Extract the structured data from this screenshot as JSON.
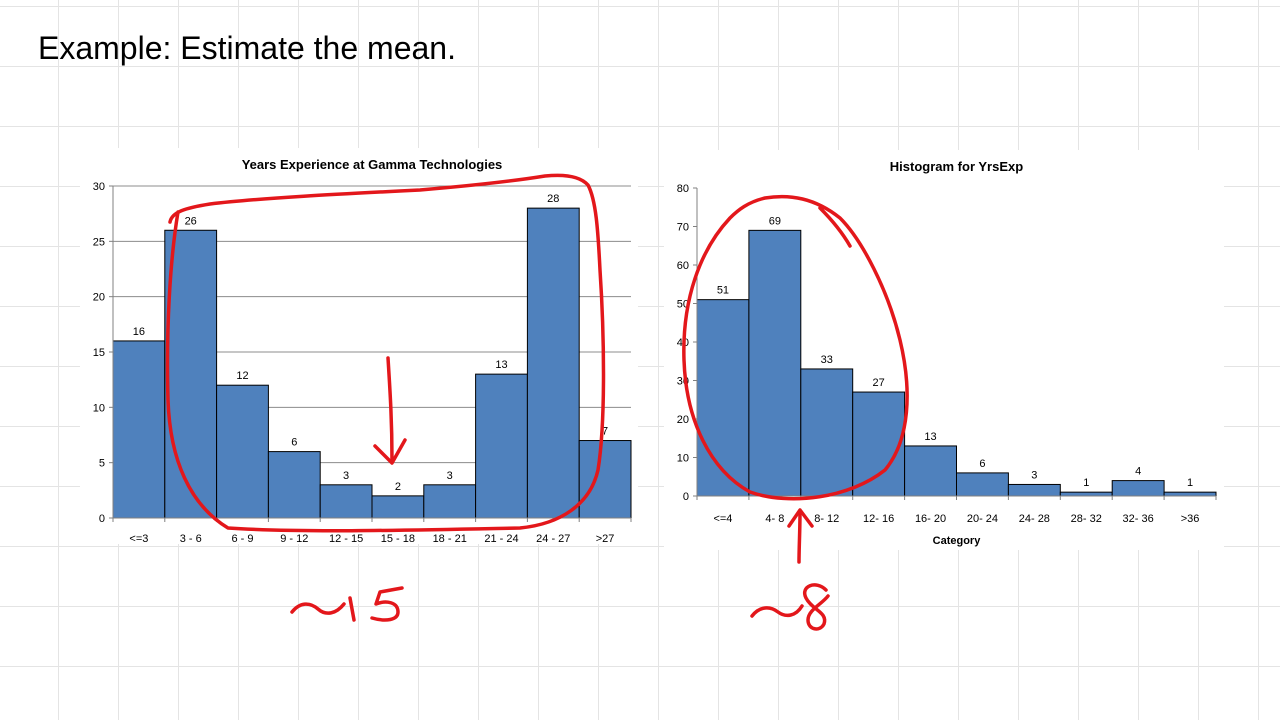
{
  "slide": {
    "title": "Example: Estimate the mean."
  },
  "chart_data": [
    {
      "type": "bar",
      "title": "Years Experience at Gamma Technologies",
      "xlabel": "",
      "ylabel": "",
      "categories": [
        "<=3",
        "3 - 6",
        "6 - 9",
        "9 - 12",
        "12 - 15",
        "15 - 18",
        "18 - 21",
        "21 - 24",
        "24 - 27",
        ">27"
      ],
      "values": [
        16,
        26,
        12,
        6,
        3,
        2,
        3,
        13,
        28,
        7
      ],
      "ylim": [
        0,
        30
      ],
      "yticks": [
        0,
        5,
        10,
        15,
        20,
        25,
        30
      ],
      "grid": true,
      "bar_color": "#4f81bd",
      "data_labels": true
    },
    {
      "type": "bar",
      "title": "Histogram for YrsExp",
      "xlabel": "Category",
      "ylabel": "",
      "categories": [
        "<=4",
        "4- 8",
        "8- 12",
        "12- 16",
        "16- 20",
        "20- 24",
        "24- 28",
        "28- 32",
        "32- 36",
        ">36"
      ],
      "values": [
        51,
        69,
        33,
        27,
        13,
        6,
        3,
        1,
        4,
        1
      ],
      "ylim": [
        0,
        80
      ],
      "yticks": [
        0,
        10,
        20,
        30,
        40,
        50,
        60,
        70,
        80
      ],
      "grid": false,
      "bar_color": "#4f81bd",
      "data_labels": true
    }
  ],
  "annotations": {
    "ink_color": "#e3171b",
    "left_estimate": "~15",
    "right_estimate": "~8"
  }
}
